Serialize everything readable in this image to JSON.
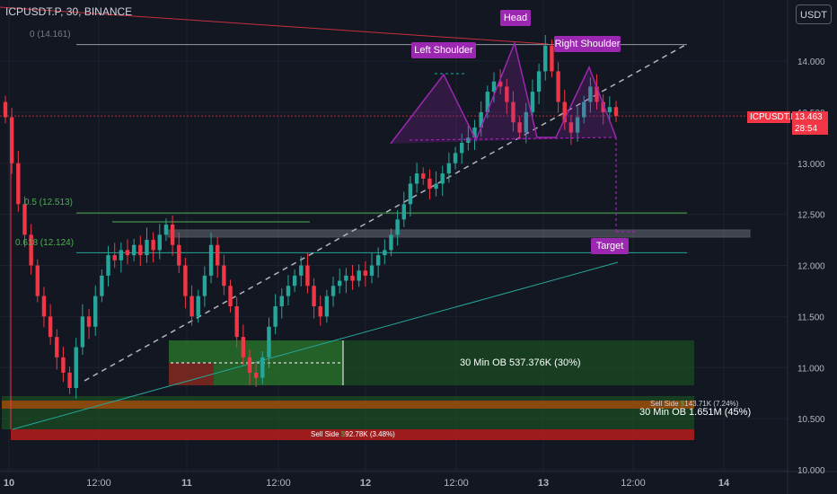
{
  "header": {
    "title": "ICPUSDT.P, 30, BINANCE",
    "currency_button": "USDT"
  },
  "colors": {
    "background": "#131722",
    "up": "#26a69a",
    "down": "#f23645",
    "pattern": "#9c27b0",
    "fib": "#4caf50"
  },
  "pattern_labels": {
    "head": "Head",
    "left_shoulder": "Left Shoulder",
    "right_shoulder": "Right Shoulder",
    "target": "Target"
  },
  "fib_levels": [
    {
      "label": "0 (14.161)",
      "price": 14.161,
      "color": "#787b86"
    },
    {
      "label": "0.5 (12.513)",
      "price": 12.513,
      "color": "#4caf50"
    },
    {
      "label": "0.618 (12.124)",
      "price": 12.124,
      "color": "#4caf50"
    }
  ],
  "order_blocks": {
    "ob1_label": "30 Min OB 537.376K (30%)",
    "ob2_label": "30 Min OB 1.651M (45%)",
    "sell_side_1_prefix": "Sell Side ",
    "sell_side_1_value": "143.71K (7.24%)",
    "sell_side_2_prefix": "Sell Side ",
    "sell_side_2_value": "92.78K (3.48%)",
    "dollar_sign": "$"
  },
  "price_badge": {
    "symbol": "ICPUSDT.P",
    "price": "13.463",
    "countdown": "28:54"
  },
  "chart_data": {
    "type": "candlestick",
    "title": "ICPUSDT.P, 30, BINANCE",
    "ylim": [
      10.0,
      14.4
    ],
    "y_ticks": [
      "14.000",
      "13.500",
      "13.000",
      "12.500",
      "12.000",
      "11.500",
      "11.000",
      "10.500",
      "10.000"
    ],
    "x_ticks": [
      "10",
      "12:00",
      "11",
      "12:00",
      "12",
      "12:00",
      "13",
      "12:00",
      "14"
    ],
    "current_price": 13.463,
    "closes": [
      13.45,
      13.0,
      12.6,
      12.3,
      12.0,
      11.7,
      11.5,
      11.3,
      11.1,
      10.95,
      10.8,
      11.2,
      11.5,
      11.4,
      11.7,
      11.9,
      12.1,
      12.05,
      12.15,
      12.1,
      12.2,
      12.1,
      12.25,
      12.15,
      12.3,
      12.4,
      12.2,
      12.0,
      11.7,
      11.5,
      11.7,
      11.9,
      12.2,
      12.0,
      11.8,
      11.6,
      11.3,
      11.1,
      10.95,
      10.9,
      11.1,
      11.4,
      11.6,
      11.7,
      11.8,
      11.9,
      12.0,
      11.8,
      11.6,
      11.5,
      11.7,
      11.8,
      11.85,
      11.9,
      11.85,
      11.95,
      11.9,
      12.0,
      12.1,
      12.15,
      12.3,
      12.45,
      12.6,
      12.8,
      12.9,
      12.85,
      12.75,
      12.8,
      12.9,
      13.0,
      13.1,
      13.2,
      13.25,
      13.35,
      13.5,
      13.7,
      13.8,
      13.75,
      13.6,
      13.4,
      13.3,
      13.5,
      13.7,
      13.9,
      14.15,
      13.9,
      13.6,
      13.4,
      13.3,
      13.45,
      13.6,
      13.75,
      13.6,
      13.5,
      13.55,
      13.463
    ],
    "fib_levels": [
      14.161,
      12.513,
      12.124
    ],
    "pattern": {
      "left_shoulder": 13.85,
      "head": 14.15,
      "right_shoulder": 13.93,
      "neckline": 13.25,
      "target": 12.32
    }
  }
}
